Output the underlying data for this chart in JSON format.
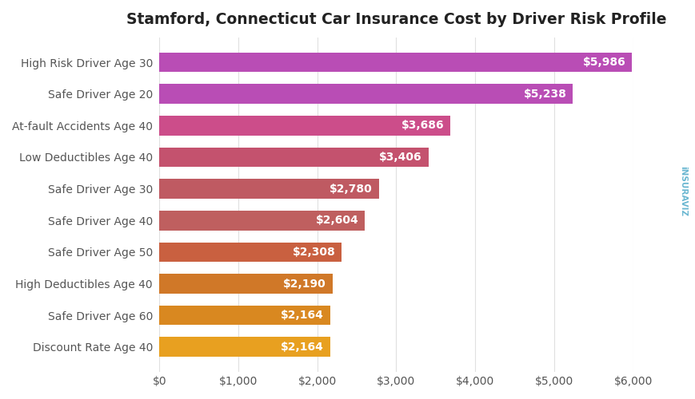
{
  "title": "Stamford, Connecticut Car Insurance Cost by Driver Risk Profile",
  "categories": [
    "High Risk Driver Age 30",
    "Safe Driver Age 20",
    "At-fault Accidents Age 40",
    "Low Deductibles Age 40",
    "Safe Driver Age 30",
    "Safe Driver Age 40",
    "Safe Driver Age 50",
    "High Deductibles Age 40",
    "Safe Driver Age 60",
    "Discount Rate Age 40"
  ],
  "values": [
    5986,
    5238,
    3686,
    3406,
    2780,
    2604,
    2308,
    2190,
    2164,
    2164
  ],
  "bar_colors": [
    "#b94db5",
    "#b94db5",
    "#cc4d8a",
    "#c4526e",
    "#bf5a62",
    "#bf5f5f",
    "#c96040",
    "#d07828",
    "#d98820",
    "#e8a020"
  ],
  "labels": [
    "$5,986",
    "$5,238",
    "$3,686",
    "$3,406",
    "$2,780",
    "$2,604",
    "$2,308",
    "$2,190",
    "$2,164",
    "$2,164"
  ],
  "xlim": [
    0,
    6000
  ],
  "xticks": [
    0,
    1000,
    2000,
    3000,
    4000,
    5000,
    6000
  ],
  "xtick_labels": [
    "$0",
    "$1,000",
    "$2,000",
    "$3,000",
    "$4,000",
    "$5,000",
    "$6,000"
  ],
  "background_color": "#ffffff",
  "grid_color": "#e0e0e0",
  "title_fontsize": 13.5,
  "label_fontsize": 10,
  "tick_fontsize": 10,
  "bar_label_fontsize": 10,
  "bar_height": 0.62,
  "watermark_text": "iNSURAVIZ",
  "watermark_color": "#5aafcc"
}
